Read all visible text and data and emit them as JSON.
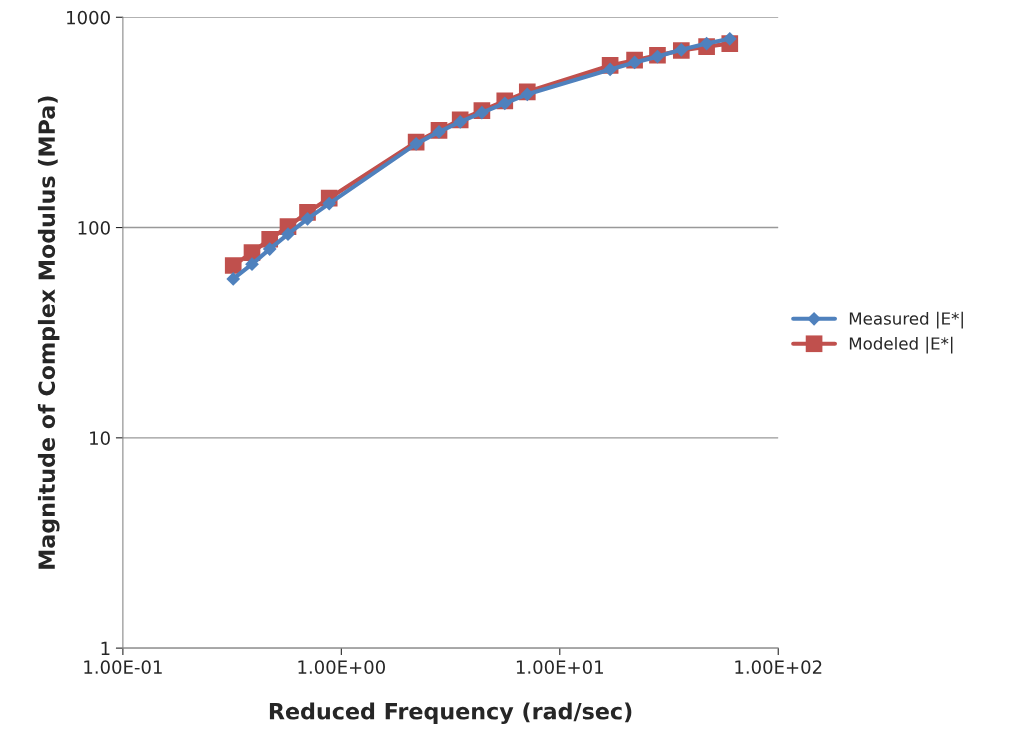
{
  "chart_data": {
    "type": "line",
    "xlabel": "Reduced Frequency (rad/sec)",
    "ylabel": "Magnitude of Complex Modulus (MPa)",
    "log": "xy",
    "x": [
      0.32,
      0.39,
      0.47,
      0.57,
      0.7,
      0.88,
      2.2,
      2.8,
      3.5,
      4.4,
      5.6,
      7.1,
      17,
      22,
      28,
      36,
      47,
      60
    ],
    "series": [
      {
        "name": "Measured |E*|",
        "color": "#4f81bd",
        "marker": "diamond",
        "values": [
          57,
          67,
          79,
          93,
          110,
          130,
          250,
          285,
          318,
          352,
          390,
          430,
          565,
          610,
          650,
          700,
          750,
          790
        ]
      },
      {
        "name": "Modeled |E*|",
        "color": "#c0504d",
        "marker": "square",
        "values": [
          66,
          76,
          88,
          101,
          118,
          138,
          255,
          290,
          325,
          360,
          400,
          442,
          590,
          625,
          660,
          695,
          725,
          750
        ]
      }
    ],
    "xlim": [
      0.1,
      100
    ],
    "ylim": [
      1,
      1000
    ],
    "xticks": [
      {
        "value": 0.1,
        "label": "1.00E-01"
      },
      {
        "value": 1,
        "label": "1.00E+00"
      },
      {
        "value": 10,
        "label": "1.00E+01"
      },
      {
        "value": 100,
        "label": "1.00E+02"
      }
    ],
    "yticks": [
      1,
      10,
      100,
      1000
    ],
    "grid": "y",
    "legend": "right",
    "line_style": "solid"
  }
}
